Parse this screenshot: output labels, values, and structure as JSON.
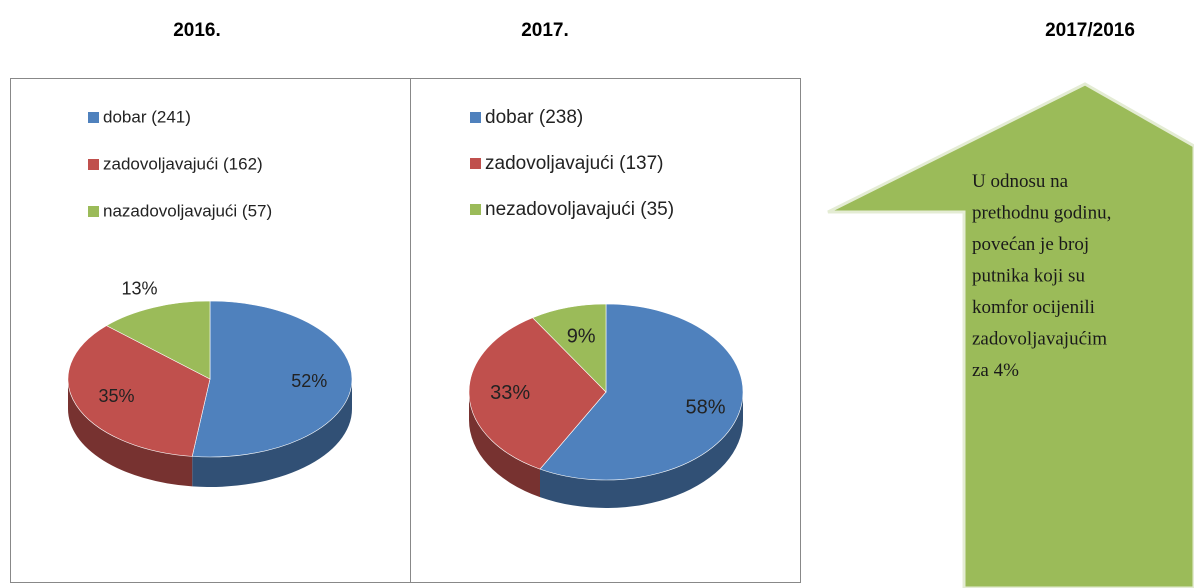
{
  "headers": [
    "2016.",
    "2017.",
    "2017/2016"
  ],
  "chart_data": [
    {
      "type": "pie",
      "categories": [
        "dobar (241)",
        "zadovoljavajući (162)",
        "nazadovoljavajući (57)"
      ],
      "values": [
        52,
        35,
        13
      ],
      "value_labels": [
        "52%",
        "35%",
        "13%"
      ],
      "colors": [
        "#4f81bd",
        "#c0504d",
        "#9bbb59"
      ]
    },
    {
      "type": "pie",
      "categories": [
        "dobar (238)",
        "zadovoljavajući (137)",
        "nezadovoljavajući (35)"
      ],
      "values": [
        58,
        33,
        9
      ],
      "value_labels": [
        "58%",
        "33%",
        "9%"
      ],
      "colors": [
        "#4f81bd",
        "#c0504d",
        "#9bbb59"
      ]
    }
  ],
  "callout": [
    "U odnosu na",
    "prethodnu godinu,",
    "povećan je broj",
    "putnika koji su",
    "komfor ocijenili",
    "zadovoljavajućim",
    "za 4%"
  ]
}
